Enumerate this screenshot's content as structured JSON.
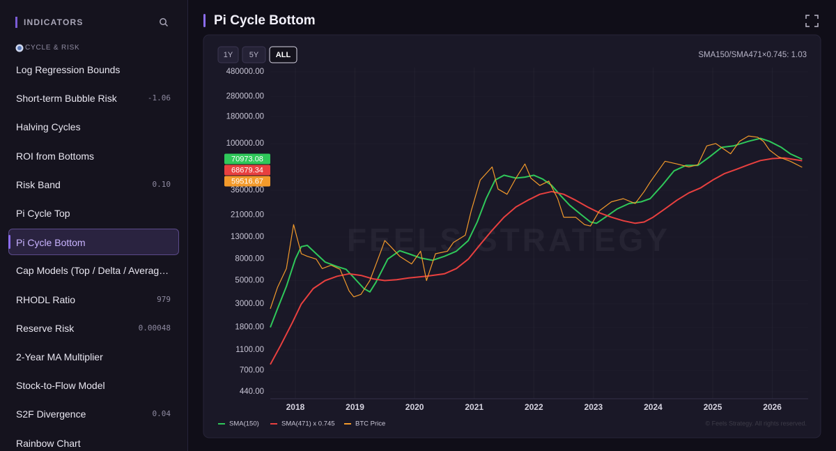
{
  "sidebar": {
    "title": "INDICATORS",
    "section": "CYCLE & RISK",
    "active_index": 6,
    "items": [
      {
        "label": "Log Regression Bounds"
      },
      {
        "label": "Short-term Bubble Risk",
        "value": "-1.06"
      },
      {
        "label": "Halving Cycles"
      },
      {
        "label": "ROI from Bottoms"
      },
      {
        "label": "Risk Band",
        "value": "0.10"
      },
      {
        "label": "Pi Cycle Top"
      },
      {
        "label": "Pi Cycle Bottom"
      },
      {
        "label": "Cap Models (Top / Delta / Averag…"
      },
      {
        "label": "RHODL Ratio",
        "value": "979"
      },
      {
        "label": "Reserve Risk",
        "value": "0.00048"
      },
      {
        "label": "2-Year MA Multiplier"
      },
      {
        "label": "Stock-to-Flow Model"
      },
      {
        "label": "S2F Divergence",
        "value": "0.04"
      },
      {
        "label": "Rainbow Chart"
      }
    ]
  },
  "header": {
    "title": "Pi Cycle Bottom"
  },
  "chart_data": {
    "type": "line",
    "ranges": [
      "1Y",
      "5Y",
      "ALL"
    ],
    "active_range": 2,
    "annotation": "SMA150/SMA471×0.745: 1.03",
    "watermark": "FEELS STRATEGY",
    "copyright": "© Feels Strategy. All rights reserved.",
    "log_y": true,
    "grid": true,
    "xlim": [
      2017.58,
      2026.6
    ],
    "xticks": [
      2018,
      2019,
      2020,
      2021,
      2022,
      2023,
      2024,
      2025,
      2026
    ],
    "ylim": [
      378,
      526000
    ],
    "yticks": [
      {
        "value": 480000,
        "label": "480000.00"
      },
      {
        "value": 280000,
        "label": "280000.00"
      },
      {
        "value": 180000,
        "label": "180000.00"
      },
      {
        "value": 100000,
        "label": "100000.00"
      },
      {
        "value": 36000,
        "label": "36000.00"
      },
      {
        "value": 21000,
        "label": "21000.00"
      },
      {
        "value": 13000,
        "label": "13000.00"
      },
      {
        "value": 8000,
        "label": "8000.00"
      },
      {
        "value": 5000,
        "label": "5000.00"
      },
      {
        "value": 3000,
        "label": "3000.00"
      },
      {
        "value": 1800,
        "label": "1800.00"
      },
      {
        "value": 1100,
        "label": "1100.00"
      },
      {
        "value": 700,
        "label": "700.00"
      },
      {
        "value": 440,
        "label": "440.00"
      }
    ],
    "series": [
      {
        "name": "SMA(150)",
        "color": "#2fc85a",
        "x": [
          2017.58,
          2017.7,
          2017.85,
          2018.0,
          2018.1,
          2018.2,
          2018.35,
          2018.5,
          2018.7,
          2018.85,
          2019.0,
          2019.15,
          2019.25,
          2019.35,
          2019.55,
          2019.75,
          2019.9,
          2020.1,
          2020.3,
          2020.5,
          2020.7,
          2020.9,
          2021.05,
          2021.2,
          2021.35,
          2021.5,
          2021.7,
          2021.85,
          2022.0,
          2022.15,
          2022.3,
          2022.45,
          2022.6,
          2022.8,
          2022.95,
          2023.05,
          2023.2,
          2023.4,
          2023.6,
          2023.8,
          2023.95,
          2024.15,
          2024.35,
          2024.55,
          2024.75,
          2024.95,
          2025.15,
          2025.35,
          2025.6,
          2025.8,
          2025.95,
          2026.15,
          2026.3,
          2026.5
        ],
        "values": [
          1800,
          2700,
          4400,
          8000,
          10500,
          10800,
          9000,
          7500,
          6800,
          6400,
          5200,
          4200,
          3900,
          4800,
          8000,
          9600,
          9000,
          8200,
          7800,
          8500,
          9500,
          12000,
          18000,
          30000,
          45000,
          50000,
          47000,
          48000,
          50000,
          46000,
          40000,
          32000,
          26000,
          21000,
          18000,
          17500,
          20000,
          24000,
          27000,
          28000,
          30000,
          40000,
          55000,
          62000,
          62000,
          75000,
          92000,
          95000,
          105000,
          112000,
          105000,
          92000,
          80000,
          70973.08
        ]
      },
      {
        "name": "SMA(471) x 0.745",
        "color": "#e8403f",
        "x": [
          2017.58,
          2017.75,
          2017.95,
          2018.1,
          2018.3,
          2018.5,
          2018.7,
          2018.9,
          2019.1,
          2019.3,
          2019.5,
          2019.7,
          2019.9,
          2020.2,
          2020.5,
          2020.7,
          2020.9,
          2021.1,
          2021.3,
          2021.5,
          2021.7,
          2021.9,
          2022.1,
          2022.3,
          2022.5,
          2022.7,
          2022.9,
          2023.1,
          2023.3,
          2023.5,
          2023.7,
          2023.85,
          2024.0,
          2024.2,
          2024.4,
          2024.6,
          2024.8,
          2025.0,
          2025.2,
          2025.4,
          2025.6,
          2025.8,
          2026.0,
          2026.2,
          2026.5
        ],
        "values": [
          800,
          1200,
          2000,
          3000,
          4200,
          5000,
          5500,
          5800,
          5600,
          5200,
          5000,
          5100,
          5300,
          5500,
          5800,
          6500,
          8000,
          11000,
          15000,
          20000,
          25000,
          29000,
          33000,
          35000,
          33000,
          29000,
          25000,
          22000,
          20000,
          18500,
          17500,
          18000,
          20000,
          24000,
          29000,
          34000,
          38000,
          45000,
          52000,
          57000,
          63000,
          69000,
          72000,
          73000,
          68679.34
        ]
      },
      {
        "name": "BTC Price",
        "color": "#f39a2b",
        "x": [
          2017.58,
          2017.7,
          2017.85,
          2017.97,
          2018.1,
          2018.2,
          2018.35,
          2018.45,
          2018.6,
          2018.75,
          2018.9,
          2018.98,
          2019.1,
          2019.25,
          2019.45,
          2019.5,
          2019.6,
          2019.75,
          2019.95,
          2020.1,
          2020.2,
          2020.35,
          2020.55,
          2020.65,
          2020.85,
          2020.95,
          2021.1,
          2021.3,
          2021.4,
          2021.55,
          2021.7,
          2021.85,
          2021.95,
          2022.1,
          2022.25,
          2022.4,
          2022.5,
          2022.7,
          2022.85,
          2022.95,
          2023.1,
          2023.3,
          2023.5,
          2023.7,
          2023.85,
          2023.95,
          2024.2,
          2024.4,
          2024.6,
          2024.75,
          2024.9,
          2025.05,
          2025.3,
          2025.45,
          2025.6,
          2025.75,
          2025.85,
          2025.95,
          2026.1,
          2026.3,
          2026.5
        ],
        "values": [
          2700,
          4300,
          6500,
          17000,
          9000,
          8500,
          8000,
          6500,
          7000,
          6400,
          4000,
          3500,
          3700,
          5000,
          10000,
          12000,
          10500,
          8500,
          7200,
          9500,
          5000,
          9000,
          9500,
          11500,
          13500,
          23000,
          45000,
          60000,
          37000,
          33000,
          47000,
          64000,
          47000,
          40000,
          44000,
          30000,
          20000,
          20000,
          17000,
          16500,
          23000,
          28000,
          30000,
          27000,
          35000,
          43000,
          68000,
          64000,
          60000,
          63000,
          95000,
          100000,
          80000,
          105000,
          118000,
          115000,
          105000,
          87000,
          75000,
          68000,
          59516.67
        ]
      }
    ]
  }
}
